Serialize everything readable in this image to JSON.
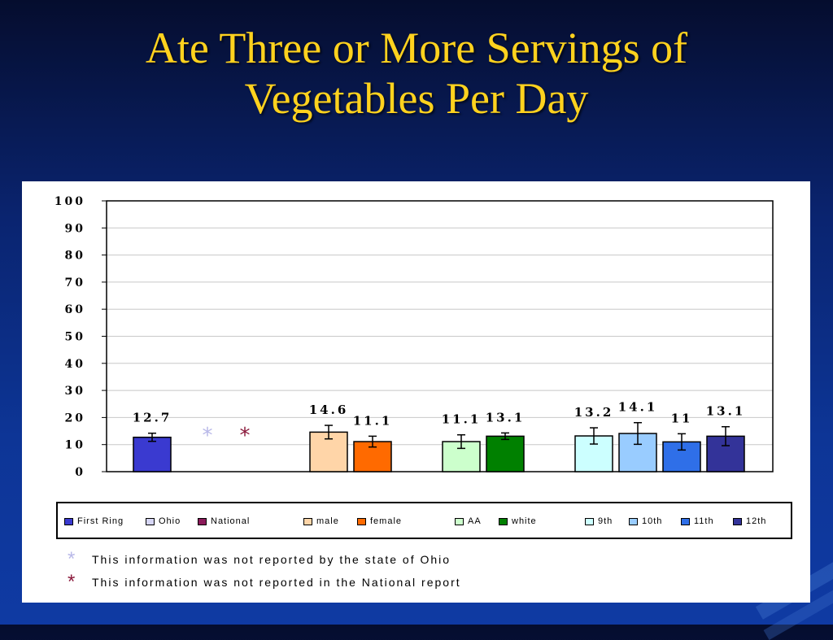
{
  "slide": {
    "title_line1": "Ate Three or More Servings of",
    "title_line2": "Vegetables Per Day"
  },
  "colors": {
    "title": "#ffd21e",
    "missing_ohio_star": "#b8b8e8",
    "missing_national_star": "#8b1a3c"
  },
  "chart_data": {
    "type": "bar",
    "ylim": [
      0,
      100
    ],
    "yticks": [
      "0",
      "10",
      "20",
      "30",
      "40",
      "50",
      "60",
      "70",
      "80",
      "90",
      "100"
    ],
    "grid": "horizontal",
    "legend_position": "bottom",
    "series": [
      {
        "name": "First Ring",
        "value": 12.7,
        "label": "12.7",
        "error": 1.5,
        "color": "#3a3ad0"
      },
      {
        "name": "Ohio",
        "value": null,
        "label": "",
        "marker": "*",
        "color": "#d6d6f5",
        "marker_color": "#b8b8e8"
      },
      {
        "name": "National",
        "value": null,
        "label": "",
        "marker": "*",
        "color": "#8b1a5a",
        "marker_color": "#8b1a3c"
      },
      {
        "name": "male",
        "value": 14.6,
        "label": "14.6",
        "error": 2.5,
        "color": "#ffd5a8"
      },
      {
        "name": "female",
        "value": 11.1,
        "label": "11.1",
        "error": 2.0,
        "color": "#ff6a00"
      },
      {
        "name": "AA",
        "value": 11.1,
        "label": "11.1",
        "error": 2.5,
        "color": "#ccffcc"
      },
      {
        "name": "white",
        "value": 13.1,
        "label": "13.1",
        "error": 1.2,
        "color": "#008000"
      },
      {
        "name": "9th",
        "value": 13.2,
        "label": "13.2",
        "error": 3.0,
        "color": "#ccffff"
      },
      {
        "name": "10th",
        "value": 14.1,
        "label": "14.1",
        "error": 4.0,
        "color": "#99ccff"
      },
      {
        "name": "11th",
        "value": 11.0,
        "label": "11",
        "error": 3.0,
        "color": "#2f6fe8"
      },
      {
        "name": "12th",
        "value": 13.1,
        "label": "13.1",
        "error": 3.5,
        "color": "#333399"
      }
    ]
  },
  "legend": {
    "items": [
      "First Ring",
      "Ohio",
      "National",
      "male",
      "female",
      "AA",
      "white",
      "9th",
      "10th",
      "11th",
      "12th"
    ],
    "display": [
      "First Ring",
      "Ohio",
      "National",
      "male",
      "female",
      "AA",
      "white",
      "9th",
      "10th",
      "11th",
      "12th"
    ]
  },
  "notes": [
    {
      "star": "*",
      "text": "This information was not reported by the state of Ohio"
    },
    {
      "star": "*",
      "text": "This information was not reported in the National report"
    }
  ]
}
